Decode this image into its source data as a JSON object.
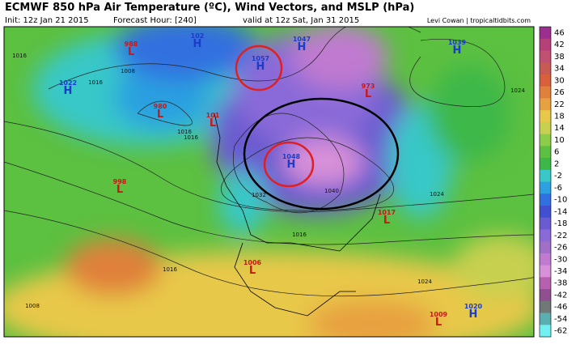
{
  "header": {
    "title": "ECMWF 850 hPa Air Temperature (ºC), Wind Vectors, and MSLP (hPa)",
    "init": "Init: 12z Jan 21 2015",
    "forecast_hour": "Forecast Hour: [240]",
    "valid": "valid at 12z Sat, Jan 31 2015",
    "credit": "Levi Cowan | tropicaltidbits.com"
  },
  "centers": [
    {
      "kind": "L",
      "value": "988"
    },
    {
      "kind": "H",
      "value": "102"
    },
    {
      "kind": "H",
      "value": "1047"
    },
    {
      "kind": "H",
      "value": "1039"
    },
    {
      "kind": "H",
      "value": "1022"
    },
    {
      "kind": "H",
      "value": "1057"
    },
    {
      "kind": "L",
      "value": "973"
    },
    {
      "kind": "L",
      "value": "980"
    },
    {
      "kind": "L",
      "value": "101"
    },
    {
      "kind": "H",
      "value": "1048"
    },
    {
      "kind": "L",
      "value": "998"
    },
    {
      "kind": "L",
      "value": "1017"
    },
    {
      "kind": "L",
      "value": "1006"
    },
    {
      "kind": "L",
      "value": "1009"
    },
    {
      "kind": "H",
      "value": "1020"
    }
  ],
  "isobar_labels": [
    "1016",
    "1008",
    "1016",
    "1024",
    "1016",
    "1016",
    "1032",
    "1040",
    "1024",
    "1016",
    "1008",
    "1016",
    "1024"
  ],
  "colorbar": {
    "labels": [
      "46",
      "42",
      "38",
      "34",
      "30",
      "26",
      "22",
      "18",
      "14",
      "10",
      "6",
      "2",
      "-2",
      "-6",
      "-10",
      "-14",
      "-18",
      "-22",
      "-26",
      "-30",
      "-34",
      "-38",
      "-42",
      "-46",
      "-54",
      "-62"
    ],
    "colors": [
      "#9c2f8f",
      "#b8407a",
      "#c25070",
      "#c85a55",
      "#d8603c",
      "#e0803a",
      "#e8a040",
      "#e8c84a",
      "#c8d050",
      "#8ccc48",
      "#5cc040",
      "#3cb848",
      "#38c8c8",
      "#2ca0e0",
      "#3070e0",
      "#4050d0",
      "#6a5cd0",
      "#8a6ad8",
      "#a070c8",
      "#c07ad0",
      "#d890d8",
      "#b860b0",
      "#905090",
      "#707878",
      "#5ab0b0",
      "#70f0f0"
    ]
  }
}
